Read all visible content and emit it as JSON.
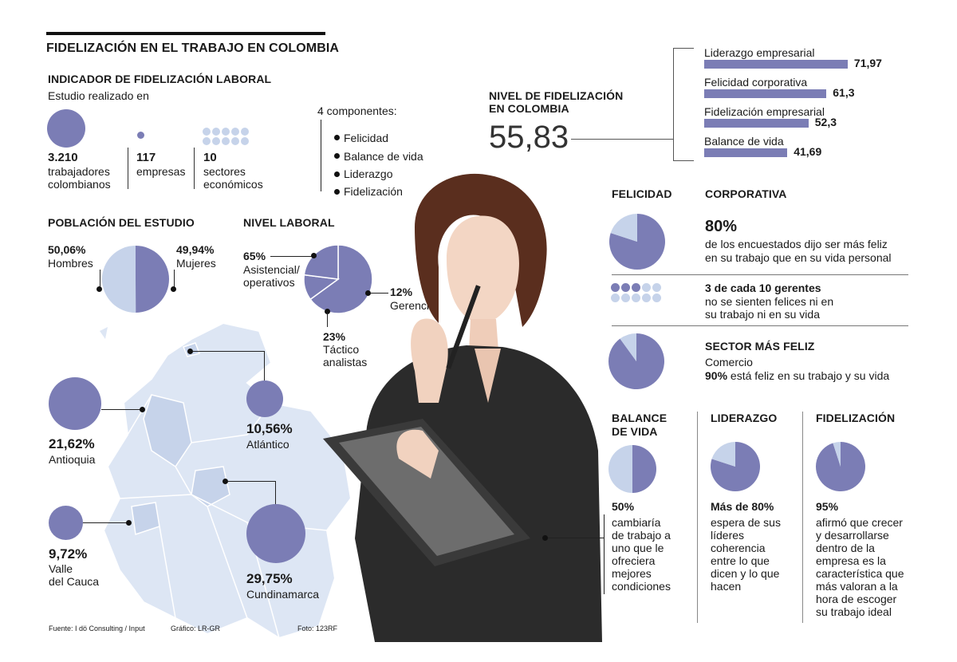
{
  "title": "FIDELIZACIÓN EN EL TRABAJO EN COLOMBIA",
  "indicador": {
    "heading": "INDICADOR DE FIDELIZACIÓN LABORAL",
    "subtitle": "Estudio realizado en",
    "workers_value": "3.210",
    "workers_label_1": "trabajadores",
    "workers_label_2": "colombianos",
    "companies_value": "117",
    "companies_label": "empresas",
    "sectors_value": "10",
    "sectors_label_1": "sectores",
    "sectors_label_2": "económicos"
  },
  "componentes": {
    "heading": "4 componentes:",
    "items": [
      "Felicidad",
      "Balance de vida",
      "Liderazgo",
      "Fidelización"
    ]
  },
  "nivel_colombia": {
    "heading_1": "NIVEL DE FIDELIZACIÓN",
    "heading_2": "EN COLOMBIA",
    "value": "55,83"
  },
  "poblacion": {
    "heading": "POBLACIÓN DEL ESTUDIO",
    "men_value": "50,06%",
    "men_label": "Hombres",
    "women_value": "49,94%",
    "women_label": "Mujeres"
  },
  "nivel_laboral": {
    "heading": "NIVEL LABORAL",
    "a_value": "65%",
    "a_label_1": "Asistencial/",
    "a_label_2": "operativos",
    "b_value": "12%",
    "b_label": "Gerencial",
    "c_value": "23%",
    "c_label_1": "Táctico",
    "c_label_2": "analistas"
  },
  "regiones": {
    "antioquia_value": "21,62%",
    "antioquia_label": "Antioquia",
    "atlantico_value": "10,56%",
    "atlantico_label": "Atlántico",
    "valle_value": "9,72%",
    "valle_label_1": "Valle",
    "valle_label_2": "del Cauca",
    "cundinamarca_value": "29,75%",
    "cundinamarca_label": "Cundinamarca"
  },
  "felicidad": {
    "heading_1": "FELICIDAD",
    "heading_2": "CORPORATIVA",
    "pct": "80%",
    "text_1": "de los encuestados dijo ser más feliz",
    "text_2": "en su trabajo que en su vida personal",
    "gerentes_bold": "3 de cada 10 gerentes",
    "gerentes_1": "no se sienten felices ni en",
    "gerentes_2": "su trabajo ni en su vida",
    "sector_heading": "SECTOR MÁS FELIZ",
    "sector_name": "Comercio",
    "sector_bold": "90%",
    "sector_rest": " está feliz en su trabajo y su vida"
  },
  "balance": {
    "heading_1": "BALANCE",
    "heading_2": "DE VIDA",
    "pct": "50%",
    "lines": [
      "cambiaría",
      "de trabajo a",
      "uno que le",
      "ofreciera",
      "mejores",
      "condiciones"
    ]
  },
  "liderazgo": {
    "heading": "LIDERAZGO",
    "pct": "Más de 80%",
    "lines": [
      "espera de sus",
      "líderes",
      "coherencia",
      "entre lo que",
      "dicen y lo que",
      "hacen"
    ]
  },
  "fidelizacion": {
    "heading": "FIDELIZACIÓN",
    "pct": "95%",
    "lines": [
      "afirmó que crecer",
      "y desarrollarse",
      "dentro de la",
      "empresa es la",
      "característica que",
      "más valoran a la",
      "hora de escoger",
      "su trabajo ideal"
    ]
  },
  "footer": {
    "source": "Fuente: I dö Consulting / Input",
    "graphic": "Gráfico: LR-GR",
    "photo": "Foto: 123RF"
  },
  "colors": {
    "accent": "#7b7db5",
    "light": "#c6d3ea",
    "map": "#dde6f4"
  },
  "chart_data": [
    {
      "type": "bar",
      "categories": [
        "Liderazgo empresarial",
        "Felicidad corporativa",
        "Fidelización empresarial",
        "Balance de vida"
      ],
      "values": [
        71.97,
        61.3,
        52.3,
        41.69
      ],
      "labels": [
        "71,97",
        "61,3",
        "52,3",
        "41,69"
      ],
      "xlim": [
        0,
        100
      ]
    },
    {
      "type": "pie",
      "name": "Población del estudio",
      "slices": [
        {
          "label": "Hombres",
          "value": 50.06
        },
        {
          "label": "Mujeres",
          "value": 49.94
        }
      ]
    },
    {
      "type": "pie",
      "name": "Nivel laboral",
      "slices": [
        {
          "label": "Asistencial/ operativos",
          "value": 65
        },
        {
          "label": "Gerencial",
          "value": 12
        },
        {
          "label": "Táctico analistas",
          "value": 23
        }
      ]
    },
    {
      "type": "pie",
      "slices": [
        {
          "value": 80
        },
        {
          "value": 20
        }
      ]
    },
    {
      "type": "pie",
      "slices": [
        {
          "value": 90
        },
        {
          "value": 10
        }
      ]
    },
    {
      "type": "pie",
      "slices": [
        {
          "value": 50
        },
        {
          "value": 50
        }
      ]
    },
    {
      "type": "pie",
      "slices": [
        {
          "value": 80
        },
        {
          "value": 20
        }
      ]
    },
    {
      "type": "pie",
      "slices": [
        {
          "value": 95
        },
        {
          "value": 5
        }
      ]
    }
  ]
}
